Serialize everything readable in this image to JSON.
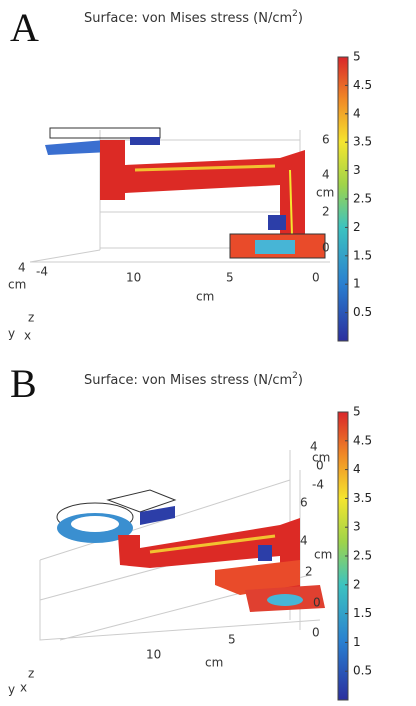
{
  "panels": [
    {
      "label": "A",
      "title": [
        "Surface: von Mises stress (N/cm",
        "2",
        ")"
      ],
      "colorbar": {
        "range": [
          0,
          5
        ],
        "ticks": [
          5,
          4.5,
          4,
          3.5,
          3,
          2.5,
          2,
          1.5,
          1,
          0.5
        ]
      },
      "z_ticks": [
        6,
        4,
        2,
        0
      ],
      "z_unit": "cm",
      "y_ticks": [
        4,
        -4
      ],
      "y_unit": "cm",
      "x_ticks": [
        10,
        5,
        0
      ],
      "x_unit": "cm",
      "triad": [
        "z",
        "y",
        "x"
      ]
    },
    {
      "label": "B",
      "title": [
        "Surface: von Mises stress (N/cm",
        "2",
        ")"
      ],
      "colorbar": {
        "range": [
          0,
          5
        ],
        "ticks": [
          5,
          4.5,
          4,
          3.5,
          3,
          2.5,
          2,
          1.5,
          1,
          0.5
        ]
      },
      "z_ticks": [
        6,
        4,
        2,
        0
      ],
      "z_unit": "cm",
      "y_ticks": [
        4,
        0,
        -4
      ],
      "y_unit": "cm",
      "x_ticks": [
        10,
        5,
        0
      ],
      "x_unit": "cm",
      "triad": [
        "z",
        "y",
        "x"
      ]
    }
  ]
}
